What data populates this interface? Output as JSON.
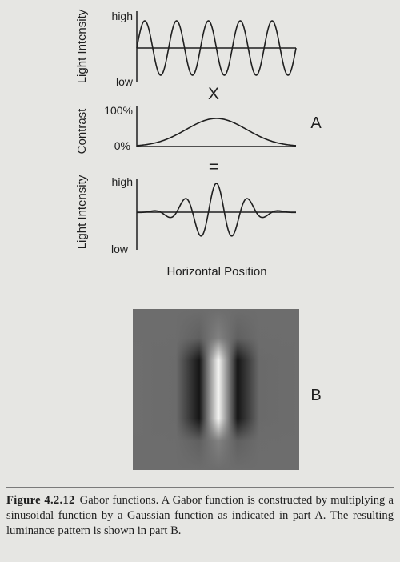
{
  "panel_a": {
    "top_plot": {
      "ylabel": "Light Intensity",
      "high": "high",
      "low": "low",
      "cycles": 5
    },
    "times_sign": "X",
    "middle_plot": {
      "ylabel": "Contrast",
      "top_tick": "100%",
      "bottom_tick": "0%",
      "envelope": "gaussian"
    },
    "equals_sign": "=",
    "bottom_plot": {
      "ylabel": "Light Intensity",
      "high": "high",
      "low": "low"
    },
    "xlabel": "Horizontal Position",
    "label": "A"
  },
  "panel_b": {
    "label": "B",
    "pattern": "gabor-luminance-patch"
  },
  "caption": {
    "figure_number": "Figure 4.2.12",
    "text": "Gabor functions. A Gabor function is constructed by multiplying a sinusoidal function by a Gaussian function as indicated in part A. The resulting luminance pattern is shown in part B."
  }
}
